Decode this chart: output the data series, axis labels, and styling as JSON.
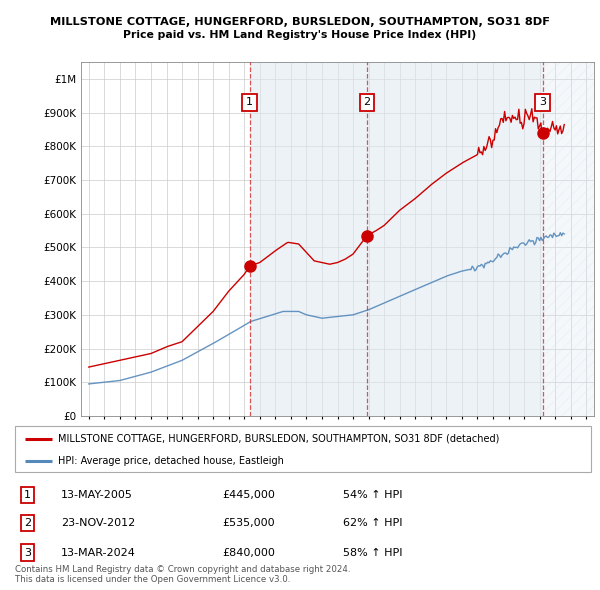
{
  "title1": "MILLSTONE COTTAGE, HUNGERFORD, BURSLEDON, SOUTHAMPTON, SO31 8DF",
  "title2": "Price paid vs. HM Land Registry's House Price Index (HPI)",
  "red_line_label": "MILLSTONE COTTAGE, HUNGERFORD, BURSLEDON, SOUTHAMPTON, SO31 8DF (detached)",
  "blue_line_label": "HPI: Average price, detached house, Eastleigh",
  "footer1": "Contains HM Land Registry data © Crown copyright and database right 2024.",
  "footer2": "This data is licensed under the Open Government Licence v3.0.",
  "purchases": [
    {
      "num": 1,
      "date": "13-MAY-2005",
      "price": 445000,
      "hpi_pct": "54% ↑ HPI",
      "date_num": 2005.36
    },
    {
      "num": 2,
      "date": "23-NOV-2012",
      "price": 535000,
      "hpi_pct": "62% ↑ HPI",
      "date_num": 2012.9
    },
    {
      "num": 3,
      "date": "13-MAR-2024",
      "price": 840000,
      "hpi_pct": "58% ↑ HPI",
      "date_num": 2024.2
    }
  ],
  "ylim": [
    0,
    1050000
  ],
  "xlim_start": 1994.5,
  "xlim_end": 2027.5,
  "shade_start": 2005.36,
  "shade_end": 2024.2,
  "hatch_start": 2024.2,
  "red_color": "#cc0000",
  "blue_color": "#5588bb",
  "shade_color": "#dde8f0",
  "hatch_color": "#dde8f0",
  "grid_color": "#cccccc",
  "background_color": "#ffffff"
}
